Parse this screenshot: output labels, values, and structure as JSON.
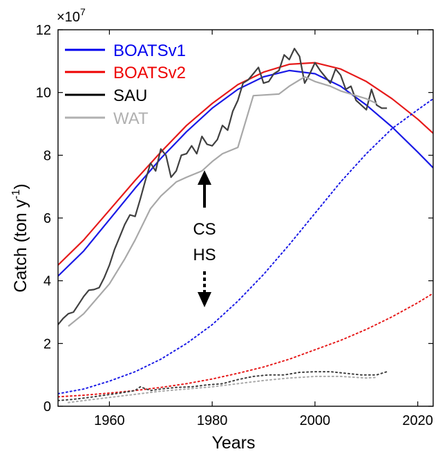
{
  "chart_data": {
    "type": "line",
    "xlabel": "Years",
    "ylabel": "Catch (ton y",
    "ylabel_superscript": "-1",
    "ylabel_close": ")",
    "y_multiplier": "×10",
    "y_multiplier_exponent": "7",
    "xlim": [
      1950,
      2023
    ],
    "ylim": [
      0,
      12
    ],
    "x_ticks": [
      1960,
      1980,
      2000,
      2020
    ],
    "y_ticks": [
      0,
      2,
      4,
      6,
      8,
      10,
      12
    ],
    "grid": false,
    "legend_position": "top-left",
    "legend": [
      {
        "label": "BOATSv1",
        "color": "#0000ee"
      },
      {
        "label": "BOATSv2",
        "color": "#ee0000"
      },
      {
        "label": "SAU",
        "color": "#000000"
      },
      {
        "label": "WAT",
        "color": "#b0b0b0"
      }
    ],
    "annotations": {
      "line1": "CS",
      "line2": "HS"
    },
    "series": [
      {
        "name": "BOATSv1",
        "style": "solid",
        "color": "#1a1ae6",
        "width": 2.2,
        "x": [
          1950,
          1955,
          1960,
          1965,
          1970,
          1975,
          1980,
          1985,
          1990,
          1995,
          2000,
          2005,
          2010,
          2015,
          2020,
          2023
        ],
        "y": [
          4.15,
          4.95,
          5.95,
          6.95,
          7.9,
          8.75,
          9.5,
          10.1,
          10.5,
          10.7,
          10.6,
          10.2,
          9.6,
          8.9,
          8.1,
          7.6
        ]
      },
      {
        "name": "BOATSv2",
        "style": "solid",
        "color": "#e61a1a",
        "width": 2.2,
        "x": [
          1950,
          1955,
          1960,
          1965,
          1970,
          1975,
          1980,
          1985,
          1990,
          1995,
          2000,
          2005,
          2010,
          2015,
          2020,
          2023
        ],
        "y": [
          4.5,
          5.3,
          6.25,
          7.2,
          8.1,
          8.95,
          9.65,
          10.25,
          10.65,
          10.9,
          10.95,
          10.75,
          10.35,
          9.8,
          9.15,
          8.7
        ]
      },
      {
        "name": "SAU",
        "style": "solid",
        "color": "#404040",
        "width": 2.2,
        "x": [
          1950,
          1951,
          1952,
          1953,
          1954,
          1955,
          1956,
          1957,
          1958,
          1959,
          1960,
          1961,
          1962,
          1963,
          1964,
          1965,
          1966,
          1967,
          1968,
          1969,
          1970,
          1971,
          1972,
          1973,
          1974,
          1975,
          1976,
          1977,
          1978,
          1979,
          1980,
          1981,
          1982,
          1983,
          1984,
          1985,
          1986,
          1987,
          1988,
          1989,
          1990,
          1991,
          1992,
          1993,
          1994,
          1995,
          1996,
          1997,
          1998,
          1999,
          2000,
          2001,
          2002,
          2003,
          2004,
          2005,
          2006,
          2007,
          2008,
          2009,
          2010,
          2011,
          2012,
          2013,
          2014
        ],
        "y": [
          2.6,
          2.8,
          2.95,
          3.0,
          3.25,
          3.5,
          3.7,
          3.72,
          3.78,
          4.1,
          4.5,
          5.0,
          5.4,
          5.8,
          6.1,
          6.05,
          6.6,
          7.2,
          7.75,
          7.5,
          8.2,
          8.0,
          7.3,
          7.5,
          8.0,
          8.05,
          8.3,
          8.05,
          8.6,
          8.35,
          8.3,
          8.5,
          8.95,
          8.8,
          9.4,
          9.75,
          10.3,
          10.4,
          10.6,
          10.8,
          10.3,
          10.35,
          10.6,
          10.7,
          11.2,
          11.05,
          11.4,
          11.15,
          10.3,
          10.6,
          10.95,
          10.7,
          10.5,
          10.3,
          10.75,
          10.55,
          10.1,
          10.2,
          9.75,
          9.6,
          9.45,
          10.1,
          9.6,
          9.5,
          9.5
        ]
      },
      {
        "name": "WAT",
        "style": "solid",
        "color": "#a8a8a8",
        "width": 2.2,
        "x": [
          1952,
          1955,
          1960,
          1963,
          1965,
          1968,
          1970,
          1973,
          1975,
          1978,
          1980,
          1982,
          1985,
          1988,
          1990,
          1993,
          1995,
          1998,
          2000,
          2003,
          2005,
          2008,
          2010,
          2012
        ],
        "y": [
          2.55,
          2.95,
          3.9,
          4.7,
          5.3,
          6.3,
          6.7,
          7.15,
          7.3,
          7.5,
          7.8,
          8.05,
          8.25,
          9.9,
          9.92,
          9.95,
          10.2,
          10.5,
          10.35,
          10.2,
          10.05,
          9.9,
          9.8,
          9.65
        ]
      },
      {
        "name": "BOATSv1",
        "style": "dotted",
        "color": "#1a1ae6",
        "width": 2.0,
        "x": [
          1950,
          1955,
          1960,
          1965,
          1970,
          1975,
          1980,
          1985,
          1990,
          1995,
          2000,
          2005,
          2010,
          2015,
          2020,
          2023
        ],
        "y": [
          0.4,
          0.55,
          0.8,
          1.1,
          1.5,
          2.0,
          2.6,
          3.35,
          4.2,
          5.15,
          6.15,
          7.15,
          8.05,
          8.85,
          9.45,
          9.8
        ]
      },
      {
        "name": "BOATSv2",
        "style": "dotted",
        "color": "#e61a1a",
        "width": 2.0,
        "x": [
          1950,
          1955,
          1960,
          1965,
          1970,
          1975,
          1980,
          1985,
          1990,
          1995,
          2000,
          2005,
          2010,
          2015,
          2020,
          2023
        ],
        "y": [
          0.3,
          0.35,
          0.42,
          0.5,
          0.6,
          0.72,
          0.87,
          1.05,
          1.25,
          1.5,
          1.8,
          2.1,
          2.45,
          2.85,
          3.3,
          3.6
        ]
      },
      {
        "name": "SAU",
        "style": "dotted",
        "color": "#404040",
        "width": 2.0,
        "x": [
          1950,
          1953,
          1956,
          1959,
          1962,
          1965,
          1966,
          1968,
          1970,
          1973,
          1976,
          1979,
          1982,
          1985,
          1988,
          1991,
          1994,
          1997,
          2000,
          2003,
          2006,
          2009,
          2012,
          2014
        ],
        "y": [
          0.18,
          0.22,
          0.28,
          0.35,
          0.42,
          0.5,
          0.62,
          0.5,
          0.55,
          0.6,
          0.62,
          0.68,
          0.72,
          0.85,
          0.95,
          1.0,
          1.0,
          1.08,
          1.1,
          1.1,
          1.05,
          1.0,
          1.0,
          1.1
        ]
      },
      {
        "name": "WAT",
        "style": "dotted",
        "color": "#a8a8a8",
        "width": 2.0,
        "x": [
          1952,
          1955,
          1960,
          1965,
          1970,
          1975,
          1980,
          1985,
          1990,
          1995,
          2000,
          2005,
          2010,
          2012
        ],
        "y": [
          0.12,
          0.18,
          0.28,
          0.38,
          0.48,
          0.55,
          0.62,
          0.72,
          0.82,
          0.9,
          0.95,
          0.95,
          0.9,
          0.92
        ]
      }
    ]
  }
}
